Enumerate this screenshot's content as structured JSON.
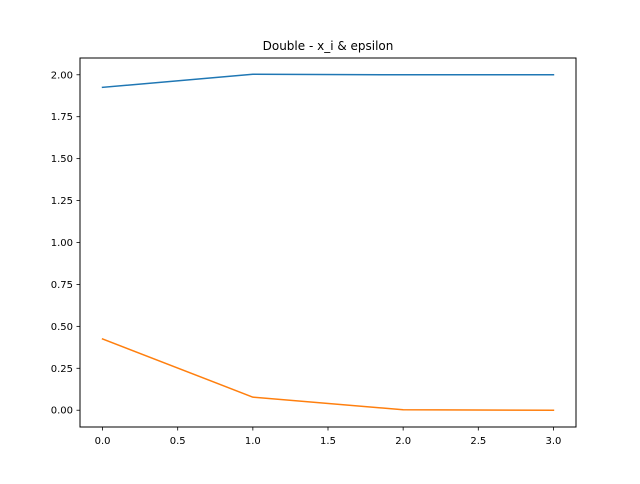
{
  "chart_data": {
    "type": "line",
    "title": "Double - x_i & epsilon",
    "xlabel": "",
    "ylabel": "",
    "x": [
      0,
      1,
      2,
      3
    ],
    "series": [
      {
        "values": [
          1.925,
          2.003,
          2.0,
          2.0
        ],
        "color": "#1f77b4"
      },
      {
        "values": [
          0.425,
          0.078,
          0.003,
          0.0
        ],
        "color": "#ff7f0e"
      }
    ],
    "xlim": [
      -0.15,
      3.15
    ],
    "ylim": [
      -0.1,
      2.1
    ],
    "xticks": [
      0.0,
      0.5,
      1.0,
      1.5,
      2.0,
      2.5,
      3.0
    ],
    "xtick_labels": [
      "0.0",
      "0.5",
      "1.0",
      "1.5",
      "2.0",
      "2.5",
      "3.0"
    ],
    "yticks": [
      0.0,
      0.25,
      0.5,
      0.75,
      1.0,
      1.25,
      1.5,
      1.75,
      2.0
    ],
    "ytick_labels": [
      "0.00",
      "0.25",
      "0.50",
      "0.75",
      "1.00",
      "1.25",
      "1.50",
      "1.75",
      "2.00"
    ],
    "grid": false,
    "legend": "none"
  }
}
